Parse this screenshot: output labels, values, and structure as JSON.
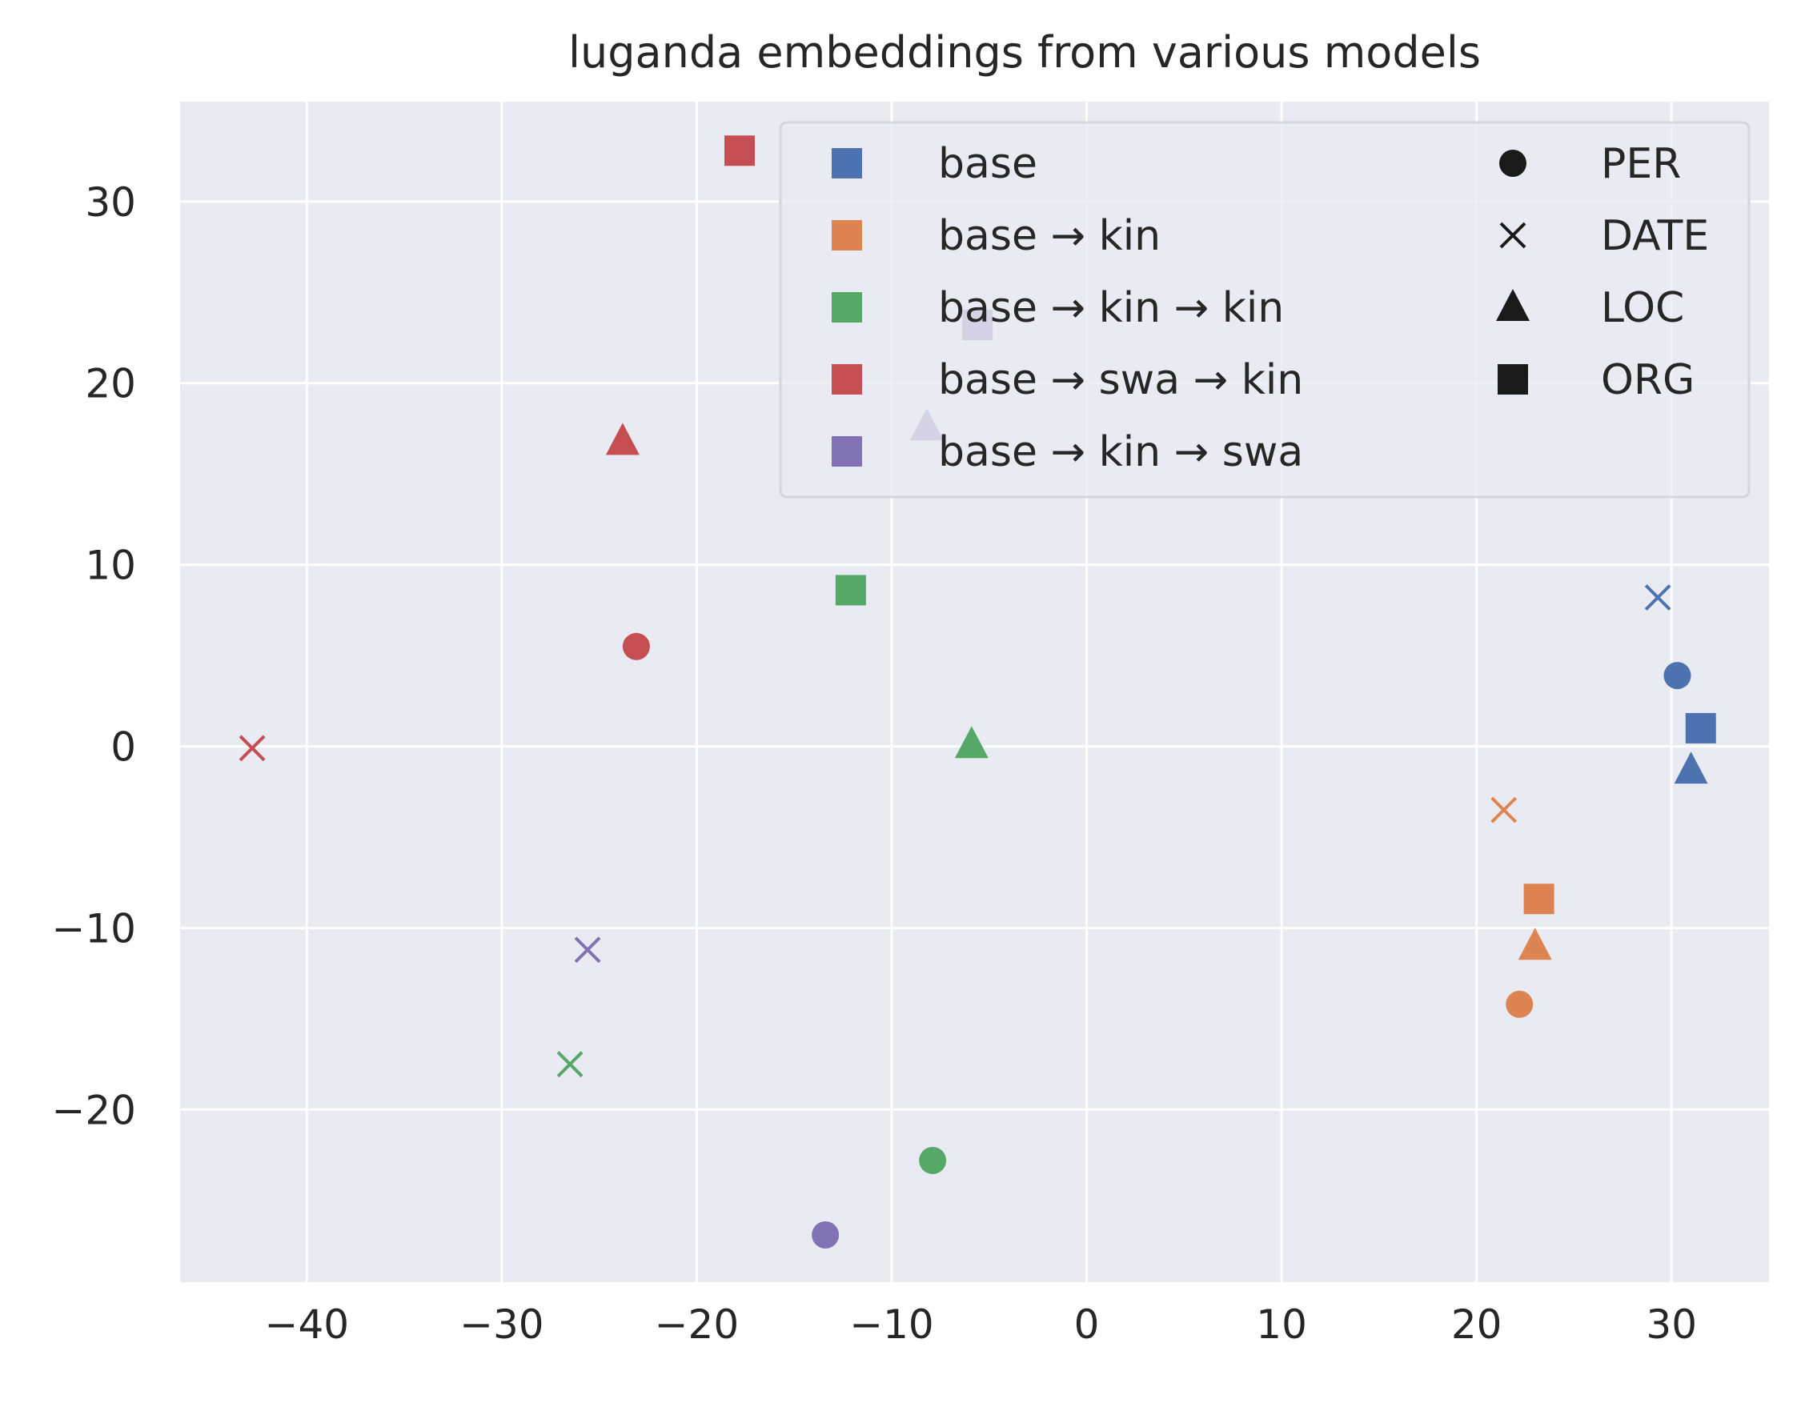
{
  "chart_data": {
    "type": "scatter",
    "title": "luganda embeddings from various models",
    "xlabel": "",
    "ylabel": "",
    "xlim": [
      -46.5,
      35
    ],
    "ylim": [
      -29.5,
      35.5
    ],
    "xticks": [
      -40,
      -30,
      -20,
      -10,
      0,
      10,
      20,
      30
    ],
    "yticks": [
      -20,
      -10,
      0,
      10,
      20,
      30
    ],
    "grid": true,
    "legend_position": "top-right",
    "marker_legend": [
      {
        "label": "PER",
        "marker": "circle"
      },
      {
        "label": "DATE",
        "marker": "x"
      },
      {
        "label": "LOC",
        "marker": "triangle"
      },
      {
        "label": "ORG",
        "marker": "square"
      }
    ],
    "series": [
      {
        "name": "base",
        "color": "#4c72b0",
        "points": [
          {
            "label": "PER",
            "x": 30.3,
            "y": 3.9
          },
          {
            "label": "DATE",
            "x": 29.3,
            "y": 8.2
          },
          {
            "label": "LOC",
            "x": 31.0,
            "y": -1.3
          },
          {
            "label": "ORG",
            "x": 31.5,
            "y": 1.0
          }
        ]
      },
      {
        "name": "base → kin",
        "color": "#dd8452",
        "points": [
          {
            "label": "PER",
            "x": 22.2,
            "y": -14.2
          },
          {
            "label": "DATE",
            "x": 21.4,
            "y": -3.5
          },
          {
            "label": "LOC",
            "x": 23.0,
            "y": -11.0
          },
          {
            "label": "ORG",
            "x": 23.2,
            "y": -8.4
          }
        ]
      },
      {
        "name": "base → kin → kin",
        "color": "#55a868",
        "points": [
          {
            "label": "PER",
            "x": -7.9,
            "y": -22.8
          },
          {
            "label": "DATE",
            "x": -26.5,
            "y": -17.5
          },
          {
            "label": "LOC",
            "x": -5.9,
            "y": 0.1
          },
          {
            "label": "ORG",
            "x": -12.1,
            "y": 8.6
          }
        ]
      },
      {
        "name": "base → swa → kin",
        "color": "#c44e52",
        "points": [
          {
            "label": "PER",
            "x": -23.1,
            "y": 5.5
          },
          {
            "label": "DATE",
            "x": -42.8,
            "y": -0.1
          },
          {
            "label": "LOC",
            "x": -23.8,
            "y": 16.8
          },
          {
            "label": "ORG",
            "x": -17.8,
            "y": 32.8
          }
        ]
      },
      {
        "name": "base → kin → swa",
        "color": "#8172b3",
        "points": [
          {
            "label": "PER",
            "x": -13.4,
            "y": -26.9
          },
          {
            "label": "DATE",
            "x": -25.6,
            "y": -11.2
          },
          {
            "label": "LOC",
            "x": -8.2,
            "y": 17.6
          },
          {
            "label": "ORG",
            "x": -5.6,
            "y": 23.2
          }
        ]
      }
    ]
  }
}
